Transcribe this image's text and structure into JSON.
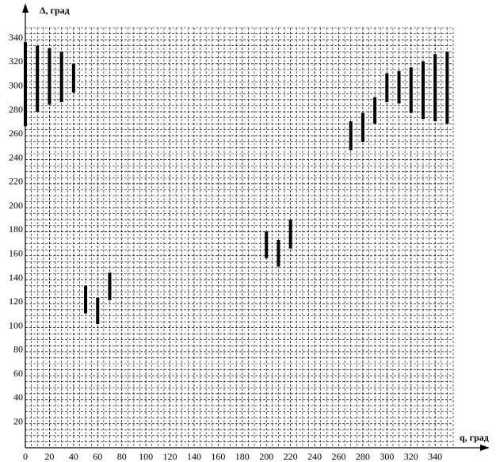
{
  "chart_data": {
    "type": "range_bar",
    "xlabel": "q, град",
    "ylabel": "Δ, град",
    "x": [
      0,
      10,
      20,
      30,
      40,
      50,
      60,
      70,
      200,
      210,
      220,
      270,
      280,
      290,
      300,
      310,
      320,
      330,
      340,
      350
    ],
    "low": [
      268,
      280,
      286,
      288,
      296,
      112,
      103,
      123,
      158,
      151,
      166,
      248,
      255,
      270,
      288,
      287,
      279,
      274,
      272,
      270
    ],
    "high": [
      338,
      335,
      333,
      330,
      320,
      135,
      125,
      146,
      180,
      173,
      190,
      272,
      279,
      292,
      312,
      314,
      317,
      322,
      328,
      330
    ],
    "color": "#000000",
    "xlim": [
      0,
      355
    ],
    "ylim": [
      0,
      350
    ],
    "xticks": [
      0,
      20,
      40,
      60,
      80,
      100,
      120,
      140,
      160,
      180,
      200,
      220,
      240,
      260,
      280,
      300,
      320,
      340
    ],
    "yticks": [
      20,
      40,
      60,
      80,
      100,
      120,
      140,
      160,
      180,
      200,
      220,
      240,
      260,
      280,
      300,
      320,
      340
    ],
    "grid": true
  }
}
